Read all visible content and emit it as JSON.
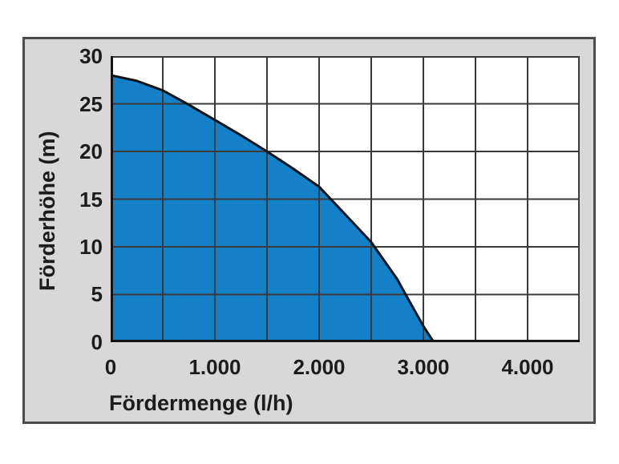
{
  "colors": {
    "page_background": "#ffffff",
    "panel_background": "#d8d8d8",
    "panel_border": "#4b4b4b",
    "plot_background": "#ffffff",
    "grid_line": "#3a3a3a",
    "axis_line": "#131313",
    "curve_line": "#131313",
    "curve_fill": "#1480c8",
    "text": "#1c1c1c"
  },
  "chart_data": {
    "type": "area",
    "title": "",
    "xlabel": "Fördermenge (l/h)",
    "ylabel": "Förderhöhe (m)",
    "xlim": [
      0,
      4500
    ],
    "ylim": [
      0,
      30
    ],
    "x_grid_step": 500,
    "y_grid_step": 5,
    "grid": true,
    "legend": false,
    "x_ticks": [
      0,
      1000,
      2000,
      3000,
      4000
    ],
    "x_tick_labels": [
      "0",
      "1.000",
      "2.000",
      "3.000",
      "4.000"
    ],
    "y_ticks": [
      30,
      25,
      20,
      15,
      10,
      5,
      0
    ],
    "y_tick_labels": [
      "30",
      "25",
      "20",
      "15",
      "10",
      "5",
      "0"
    ],
    "series": [
      {
        "name": "pump-performance-curve",
        "points": [
          [
            0,
            28
          ],
          [
            250,
            27.4
          ],
          [
            500,
            26.4
          ],
          [
            750,
            24.9
          ],
          [
            1000,
            23.3
          ],
          [
            1250,
            21.7
          ],
          [
            1500,
            20
          ],
          [
            1750,
            18.2
          ],
          [
            2000,
            16.3
          ],
          [
            2250,
            13.4
          ],
          [
            2500,
            10.5
          ],
          [
            2750,
            6.6
          ],
          [
            2830,
            5
          ],
          [
            3000,
            1.7
          ],
          [
            3100,
            0
          ]
        ]
      }
    ]
  }
}
